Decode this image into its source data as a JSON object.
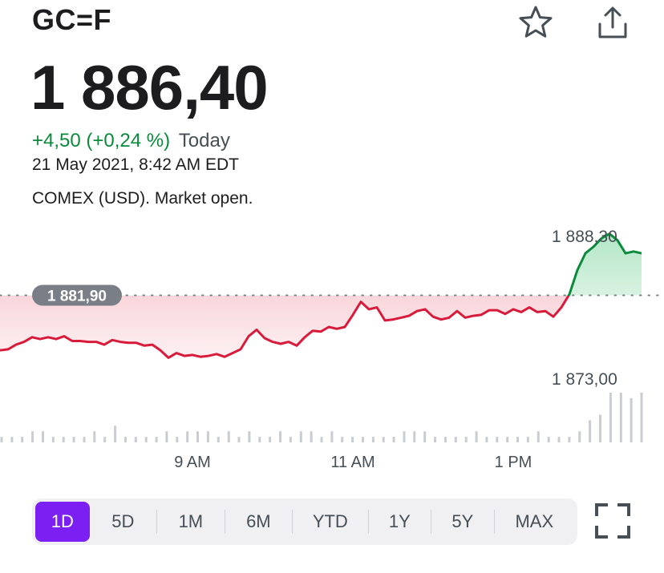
{
  "header": {
    "ticker": "GC=F",
    "star_icon": "star-icon",
    "share_icon": "share-icon"
  },
  "quote": {
    "price": "1 886,40",
    "change": "+4,50 (+0,24 %)",
    "change_label": "Today",
    "timestamp": "21 May 2021, 8:42 AM EDT",
    "market_status": "COMEX (USD). Market open."
  },
  "colors": {
    "up": "#0b8a3c",
    "down": "#d81b3a",
    "accent": "#7b1ff2",
    "volume": "#c9ccd1"
  },
  "chart_data": {
    "type": "line",
    "title": "",
    "xlabel": "",
    "ylabel": "",
    "previous_close": 1881.9,
    "previous_close_label": "1 881,90",
    "y_tick_labels": [
      "1 888,30",
      "1 873,00"
    ],
    "y_ticks": [
      1888.3,
      1873.0
    ],
    "x_tick_labels": [
      "9 AM",
      "11 AM",
      "1 PM"
    ],
    "x_ticks": [
      9.0,
      11.0,
      13.0
    ],
    "xlim": [
      6.6,
      14.8
    ],
    "series": [
      {
        "values_x": [
          6.6,
          6.7,
          6.8,
          6.9,
          7.0,
          7.1,
          7.2,
          7.3,
          7.4,
          7.5,
          7.6,
          7.7,
          7.8,
          7.9,
          8.0,
          8.1,
          8.2,
          8.3,
          8.4,
          8.5,
          8.6,
          8.7,
          8.8,
          8.9,
          9.0,
          9.1,
          9.2,
          9.3,
          9.4,
          9.5,
          9.6,
          9.7,
          9.8,
          9.9,
          10.0,
          10.1,
          10.2,
          10.3,
          10.4,
          10.5,
          10.6,
          10.7,
          10.8,
          10.9,
          11.0,
          11.1,
          11.2,
          11.3,
          11.4,
          11.5,
          11.6,
          11.7,
          11.8,
          11.9,
          12.0,
          12.1,
          12.2,
          12.3,
          12.4,
          12.5,
          12.6,
          12.7,
          12.8,
          12.9,
          13.0,
          13.1,
          13.2,
          13.3,
          13.4,
          13.5,
          13.6,
          13.7,
          13.8,
          13.9,
          14.0,
          14.1,
          14.2,
          14.3,
          14.4,
          14.5,
          14.6
        ],
        "values_y": [
          1876.0,
          1876.1,
          1876.6,
          1876.9,
          1877.4,
          1877.2,
          1877.4,
          1877.2,
          1877.5,
          1877.0,
          1877.0,
          1876.9,
          1876.9,
          1876.6,
          1877.1,
          1876.9,
          1876.8,
          1876.8,
          1876.5,
          1876.6,
          1876.0,
          1875.2,
          1875.7,
          1875.4,
          1875.5,
          1875.3,
          1875.4,
          1875.6,
          1875.3,
          1875.7,
          1876.1,
          1877.5,
          1878.2,
          1877.3,
          1876.9,
          1876.7,
          1876.9,
          1876.5,
          1877.4,
          1878.1,
          1878.0,
          1878.5,
          1878.3,
          1878.5,
          1879.8,
          1881.2,
          1880.4,
          1880.6,
          1879.2,
          1879.3,
          1879.5,
          1879.7,
          1880.2,
          1880.4,
          1879.6,
          1879.3,
          1879.5,
          1880.2,
          1879.5,
          1879.7,
          1879.8,
          1880.3,
          1880.3,
          1879.9,
          1880.4,
          1880.1,
          1880.6,
          1880.1,
          1880.2,
          1879.6,
          1880.6,
          1882.0,
          1884.6,
          1886.4,
          1887.1,
          1888.0,
          1888.5,
          1887.8,
          1886.4,
          1886.6,
          1886.4
        ]
      }
    ],
    "volume": [
      1,
      1,
      1,
      2,
      2,
      1,
      1,
      1,
      1,
      2,
      1,
      3,
      1,
      1,
      1,
      1,
      2,
      1,
      2,
      2,
      2,
      1,
      2,
      1,
      2,
      1,
      1,
      2,
      1,
      2,
      2,
      1,
      2,
      1,
      1,
      1,
      1,
      1,
      1,
      2,
      2,
      2,
      1,
      1,
      1,
      1,
      2,
      1,
      1,
      1,
      1,
      1,
      2,
      1,
      1,
      1,
      2,
      4,
      5,
      9,
      9,
      8,
      9
    ],
    "grid": false,
    "legend": "none"
  },
  "ranges": [
    {
      "label": "1D",
      "active": true
    },
    {
      "label": "5D",
      "active": false
    },
    {
      "label": "1M",
      "active": false
    },
    {
      "label": "6M",
      "active": false
    },
    {
      "label": "YTD",
      "active": false
    },
    {
      "label": "1Y",
      "active": false
    },
    {
      "label": "5Y",
      "active": false
    },
    {
      "label": "MAX",
      "active": false
    }
  ],
  "fullscreen_icon": "fullscreen-icon"
}
